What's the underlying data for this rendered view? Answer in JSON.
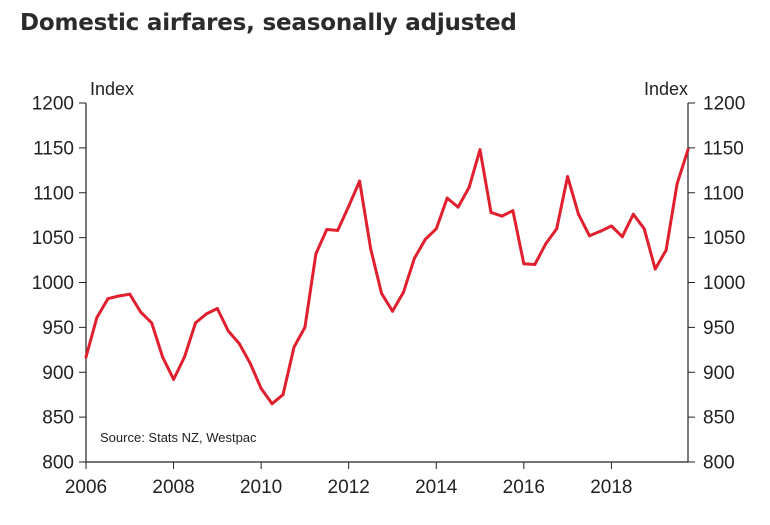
{
  "chart_data": {
    "type": "line",
    "title": "Domestic airfares, seasonally adjusted",
    "ylabel_left": "Index",
    "ylabel_right": "Index",
    "source": "Source: Stats NZ, Westpac",
    "ylim": [
      800,
      1200
    ],
    "yticks": [
      800,
      850,
      900,
      950,
      1000,
      1050,
      1100,
      1150,
      1200
    ],
    "xlim": [
      2006.0,
      2019.75
    ],
    "xticks": [
      2006,
      2008,
      2010,
      2012,
      2014,
      2016,
      2018
    ],
    "grid": false,
    "colors": {
      "line": "#e0202e",
      "axis": "#222222"
    },
    "series": [
      {
        "x": [
          2006.0,
          2006.25,
          2006.5,
          2006.75,
          2007.0,
          2007.25,
          2007.5,
          2007.75,
          2008.0,
          2008.25,
          2008.5,
          2008.75,
          2009.0,
          2009.25,
          2009.5,
          2009.75,
          2010.0,
          2010.25,
          2010.5,
          2010.75,
          2011.0,
          2011.25,
          2011.5,
          2011.75,
          2012.0,
          2012.25,
          2012.5,
          2012.75,
          2013.0,
          2013.25,
          2013.5,
          2013.75,
          2014.0,
          2014.25,
          2014.5,
          2014.75,
          2015.0,
          2015.25,
          2015.5,
          2015.75,
          2016.0,
          2016.25,
          2016.5,
          2016.75,
          2017.0,
          2017.25,
          2017.5,
          2017.75,
          2018.0,
          2018.25,
          2018.5,
          2018.75,
          2019.0,
          2019.25,
          2019.5,
          2019.75
        ],
        "y": [
          917,
          961,
          982,
          985,
          987,
          967,
          955,
          917,
          892,
          917,
          955,
          965,
          971,
          946,
          932,
          910,
          882,
          865,
          875,
          928,
          950,
          1032,
          1059,
          1058,
          1085,
          1113,
          1038,
          988,
          968,
          989,
          1027,
          1048,
          1060,
          1094,
          1084,
          1106,
          1148,
          1078,
          1074,
          1080,
          1021,
          1020,
          1043,
          1060,
          1118,
          1076,
          1052,
          1057,
          1063,
          1051,
          1076,
          1060,
          1015,
          1036,
          1110,
          1148
        ]
      }
    ]
  }
}
